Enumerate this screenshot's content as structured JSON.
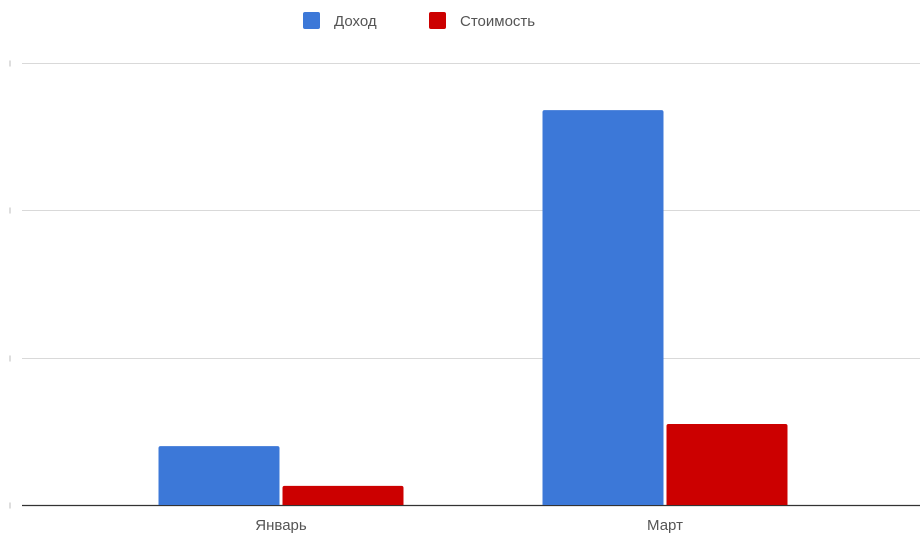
{
  "chart_data": {
    "type": "bar",
    "categories": [
      "Январь",
      "Март"
    ],
    "series": [
      {
        "name": "Доход",
        "color": "#3c78d8",
        "values": [
          2,
          13.4
        ]
      },
      {
        "name": "Стоимость",
        "color": "#cc0000",
        "values": [
          0.65,
          2.75
        ]
      }
    ],
    "ylim": [
      0,
      15
    ],
    "y_ticks": [
      0,
      5,
      10,
      15
    ],
    "y_tick_labels_visible": false,
    "grid": true,
    "legend": "top-center",
    "title": "",
    "xlabel": "",
    "ylabel": ""
  }
}
